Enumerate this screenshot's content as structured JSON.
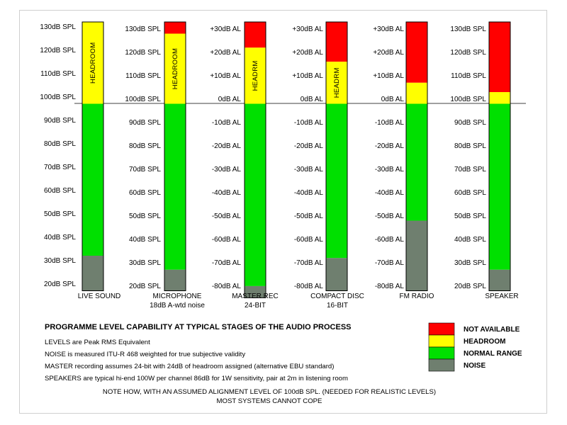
{
  "colors": {
    "not_available": "#ff0000",
    "headroom": "#ffff00",
    "normal": "#00e000",
    "noise": "#6f7f6f"
  },
  "spl_ticks": [
    "130dB SPL",
    "120dB SPL",
    "110dB SPL",
    "100dB SPL",
    "90dB SPL",
    "80dB SPL",
    "70dB SPL",
    "60dB SPL",
    "50dB SPL",
    "40dB SPL",
    "30dB SPL",
    "20dB SPL"
  ],
  "al_ticks": [
    "+30dB AL",
    "+20dB AL",
    "+10dB AL",
    "0dB AL",
    "-10dB AL",
    "-20dB AL",
    "-30dB AL",
    "-40dB AL",
    "-50dB AL",
    "-60dB AL",
    "-70dB AL",
    "-80dB AL"
  ],
  "columns": [
    {
      "name": "LIVE SOUND",
      "sub": "",
      "scale": "spl",
      "segments": {
        "not_available": 0,
        "headroom": 35,
        "normal": 65,
        "noise": 15
      },
      "seg_label": "HEADROOM"
    },
    {
      "name": "MICROPHONE",
      "sub": "18dB A-wtd noise",
      "scale": "spl",
      "segments": {
        "not_available": 5,
        "headroom": 30,
        "normal": 71,
        "noise": 9
      },
      "seg_label": "HEADROOM"
    },
    {
      "name": "MASTER REC",
      "sub": "24-BIT",
      "scale": "al",
      "segments": {
        "not_available": 11,
        "headroom": 24,
        "normal": 78,
        "noise": 5
      },
      "seg_label": "HEADRM"
    },
    {
      "name": "COMPACT DISC",
      "sub": "16-BIT",
      "scale": "al",
      "segments": {
        "not_available": 17,
        "headroom": 18,
        "normal": 66,
        "noise": 14
      },
      "seg_label": "HEADRM"
    },
    {
      "name": "FM RADIO",
      "sub": "",
      "scale": "al",
      "segments": {
        "not_available": 26,
        "headroom": 9,
        "normal": 50,
        "noise": 30
      },
      "seg_label": ""
    },
    {
      "name": "SPEAKER",
      "sub": "",
      "scale": "spl",
      "segments": {
        "not_available": 30,
        "headroom": 5,
        "normal": 71,
        "noise": 9
      },
      "seg_label": ""
    }
  ],
  "title": "PROGRAMME LEVEL CAPABILITY AT TYPICAL STAGES OF THE AUDIO PROCESS",
  "notes": [
    "LEVELS are Peak RMS Equivalent",
    "NOISE is measured ITU-R 468 weighted for true subjective validity",
    "MASTER recording assumes 24-bit with 24dB of headroom assigned  (alternative EBU standard)",
    "SPEAKERS are typical hi-end 100W per channel 86dB for 1W sensitivity, pair at 2m in listening room"
  ],
  "footer": [
    "NOTE HOW, WITH AN ASSUMED ALIGNMENT LEVEL OF 100dB SPL. (NEEDED FOR REALISTIC LEVELS)",
    "MOST SYSTEMS CANNOT COPE"
  ],
  "legend": [
    {
      "key": "not_available",
      "label": "NOT AVAILABLE"
    },
    {
      "key": "headroom",
      "label": "HEADROOM"
    },
    {
      "key": "normal",
      "label": "NORMAL RANGE"
    },
    {
      "key": "noise",
      "label": "NOISE"
    }
  ]
}
